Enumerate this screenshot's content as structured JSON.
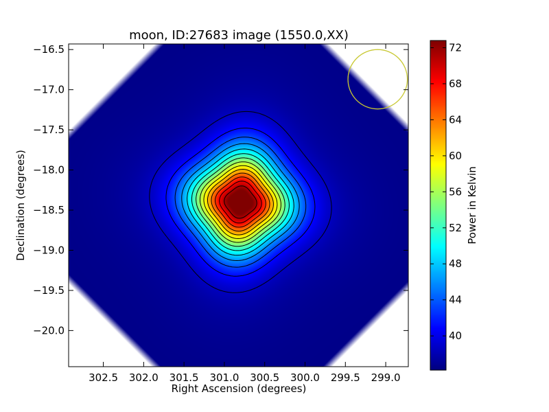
{
  "chart_data": {
    "type": "heatmap",
    "title": "moon, ID:27683 image (1550.0,XX)",
    "xlabel": "Right Ascension (degrees)",
    "ylabel": "Declination (degrees)",
    "colorbar_label": "Power in Kelvin",
    "xlim": [
      302.93,
      298.72
    ],
    "ylim": [
      -20.45,
      -16.43
    ],
    "xticks": [
      302.5,
      302.0,
      301.5,
      301.0,
      300.5,
      300.0,
      299.5,
      299.0
    ],
    "xtick_labels": [
      "302.5",
      "302.0",
      "301.5",
      "301.0",
      "300.5",
      "300.0",
      "299.5",
      "299.0"
    ],
    "yticks": [
      -16.5,
      -17.0,
      -17.5,
      -18.0,
      -18.5,
      -19.0,
      -19.5,
      -20.0
    ],
    "ytick_labels": [
      "−16.5",
      "−17.0",
      "−17.5",
      "−18.0",
      "−18.5",
      "−19.0",
      "−19.5",
      "−20.0"
    ],
    "colorbar_range": [
      36.2,
      72.8
    ],
    "colorbar_ticks": [
      40,
      44,
      48,
      52,
      56,
      60,
      64,
      68,
      72
    ],
    "colorbar_tick_labels": [
      "40",
      "44",
      "48",
      "52",
      "56",
      "60",
      "64",
      "68",
      "72"
    ],
    "colormap": "jet",
    "peak": {
      "ra": 300.8,
      "dec": -18.4,
      "value": 72.5
    },
    "baseline": 36.5,
    "contour_levels": [
      38.5,
      41,
      43.5,
      46,
      48.5,
      51,
      53.5,
      56,
      58.5,
      61,
      63.5,
      66,
      68.5,
      71
    ],
    "beam_circle": {
      "ra": 299.1,
      "dec": -16.87,
      "radius_deg": 0.37,
      "color": "#c8c832"
    }
  }
}
